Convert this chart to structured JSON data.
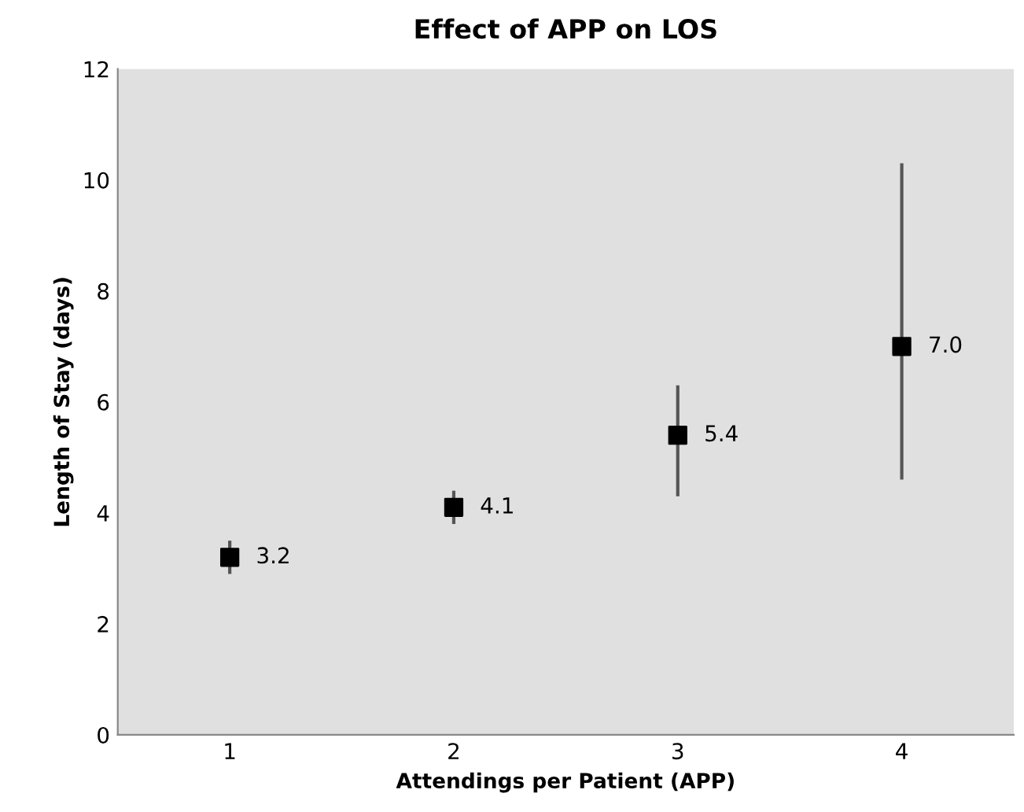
{
  "chart_data": {
    "type": "scatter",
    "title": "Effect of APP on LOS",
    "xlabel": "Attendings per Patient (APP)",
    "ylabel": "Length of Stay (days)",
    "categories": [
      "1",
      "2",
      "3",
      "4"
    ],
    "values": [
      3.2,
      4.1,
      5.4,
      7.0
    ],
    "errors": [
      [
        2.9,
        3.5
      ],
      [
        3.8,
        4.4
      ],
      [
        4.3,
        6.3
      ],
      [
        4.6,
        10.3
      ]
    ],
    "value_labels": [
      "3.2",
      "4.1",
      "5.4",
      "7.0"
    ],
    "color": "#000000",
    "marker": "square",
    "ylim": [
      0,
      12
    ],
    "yticks": [
      0,
      2,
      4,
      6,
      8,
      10,
      12
    ],
    "grid": false
  }
}
